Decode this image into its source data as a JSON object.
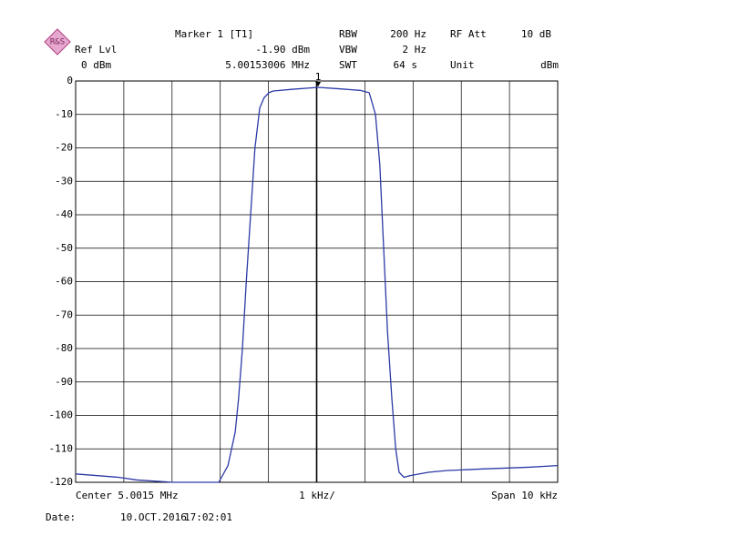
{
  "header": {
    "marker_title": "Marker 1 [T1]",
    "marker_level": "-1.90 dBm",
    "marker_freq": "5.00153006 MHz",
    "rbw_label": "RBW",
    "rbw": "200 Hz",
    "rf_att_label": "RF Att",
    "rf_att": "10 dB",
    "ref_lvl_label": "Ref Lvl",
    "ref_lvl": "0 dBm",
    "vbw_label": "VBW",
    "vbw": "2 Hz",
    "swt_label": "SWT",
    "swt": "64 s",
    "unit_label": "Unit",
    "unit": "dBm"
  },
  "chart_data": {
    "type": "line",
    "color": "#2b3aa6",
    "x": [
      4.9965,
      4.99739,
      4.99777,
      4.99852,
      4.99947,
      4.99966,
      4.99981,
      4.99988,
      4.99996,
      5.00004,
      5.00013,
      5.00022,
      5.00032,
      5.00041,
      5.00051,
      5.0006,
      5.00098,
      5.00153006,
      5.00193,
      5.0024,
      5.00259,
      5.00272,
      5.00281,
      5.00289,
      5.00297,
      5.00306,
      5.00314,
      5.00321,
      5.00331,
      5.00344,
      5.00382,
      5.00419,
      5.00495,
      5.0059,
      5.0065
    ],
    "values": [
      -117.5,
      -118.5,
      -119.3,
      -120,
      -120,
      -115,
      -105,
      -95,
      -80,
      -60,
      -40,
      -20,
      -8,
      -5,
      -3.5,
      -3,
      -2.5,
      -1.9,
      -2.3,
      -2.8,
      -3.5,
      -10,
      -25,
      -50,
      -75,
      -95,
      -110,
      -117,
      -118.5,
      -118,
      -117,
      -116.5,
      -116,
      -115.5,
      -115
    ],
    "xlim": [
      4.9965,
      5.0065
    ],
    "xticks": [
      4.9975,
      4.9985,
      4.9995,
      5.0005,
      5.0015,
      5.0025,
      5.0035,
      5.0045,
      5.0055
    ],
    "ylim": [
      -120,
      0
    ],
    "yticks": [
      0,
      -10,
      -20,
      -30,
      -40,
      -50,
      -60,
      -70,
      -80,
      -90,
      -100,
      -110,
      -120
    ],
    "grid": true,
    "marker": {
      "x": 5.00153006,
      "y": -1.9,
      "label": "1"
    }
  },
  "footer": {
    "center": "Center 5.0015 MHz",
    "per_div": "1 kHz/",
    "span": "Span 10 kHz",
    "date_label": "Date:",
    "date": "10.OCT.2016",
    "time": "17:02:01"
  }
}
